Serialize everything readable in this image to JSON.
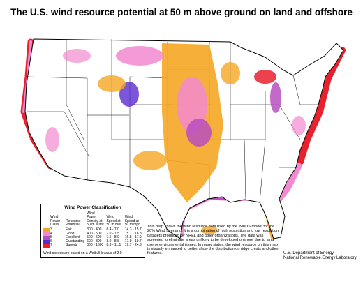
{
  "title": "The U.S. wind resource potential at 50 m above ground on land and offshore",
  "legend": {
    "title": "Wind Power Classification",
    "headers": [
      "Wind Power Class",
      "Resource Potential",
      "Wind Power Density at 50 m W/m²",
      "Wind Speed at 50 m m/s",
      "Wind Speed at 50 m mph"
    ],
    "rows": [
      {
        "class": "3",
        "potential": "Fair",
        "density": "300 - 400",
        "ms": "6.4 - 7.0",
        "mph": "14.3 - 15.7",
        "color": "#f5a623"
      },
      {
        "class": "4",
        "potential": "Good",
        "density": "400 - 500",
        "ms": "7.0 - 7.5",
        "mph": "15.7 - 16.8",
        "color": "#f28ad0"
      },
      {
        "class": "5",
        "potential": "Excellent",
        "density": "500 - 600",
        "ms": "7.5 - 8.0",
        "mph": "16.8 - 17.9",
        "color": "#b84fc0"
      },
      {
        "class": "6",
        "potential": "Outstanding",
        "density": "600 - 800",
        "ms": "8.0 - 8.8",
        "mph": "17.9 - 19.7",
        "color": "#5a2ccf"
      },
      {
        "class": "7",
        "potential": "Superb",
        "density": "800 - 1600",
        "ms": "8.8 - 11.1",
        "mph": "19.7 - 24.8",
        "color": "#e8212e"
      }
    ],
    "footnote": "Wind speeds are based on a Weibull k value of 2.0"
  },
  "description": "This map shows the wind resource data used by the WinDS model for the 20% Wind Scenario. It is a combination of high resolution and low resolution datasets produced by NREL and other organizations. The data was screened to eliminate areas unlikely to be developed onshore due to land use or environmental issues. In many states, the wind resource on this map is visually enhanced to better show the distribution on ridge crests and other features.",
  "credit": [
    "U.S. Department of Energy",
    "National Renewable Energy Laboratory"
  ]
}
